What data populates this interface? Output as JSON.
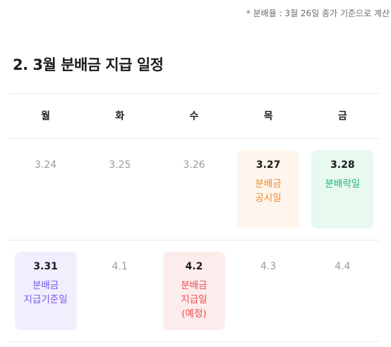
{
  "note": "* 분배율 : 3월 26일 종가 기준으로 계산",
  "title": "2. 3월 분배금 지급 일정",
  "weekdays": [
    "월",
    "화",
    "수",
    "목",
    "금"
  ],
  "weeks": [
    [
      {
        "date": "3.24",
        "event": ""
      },
      {
        "date": "3.25",
        "event": ""
      },
      {
        "date": "3.26",
        "event": ""
      },
      {
        "date": "3.27",
        "event": "분배금\n공시일",
        "color": "#f08a2c"
      },
      {
        "date": "3.28",
        "event": "분배락일",
        "color": "#1fb470"
      }
    ],
    [
      {
        "date": "3.31",
        "event": "분배금\n지급기준일",
        "color": "#7459e6"
      },
      {
        "date": "4.1",
        "event": ""
      },
      {
        "date": "4.2",
        "event": "분배금\n지급일\n(예정)",
        "color": "#ef4a51"
      },
      {
        "date": "4.3",
        "event": ""
      },
      {
        "date": "4.4",
        "event": ""
      }
    ]
  ]
}
